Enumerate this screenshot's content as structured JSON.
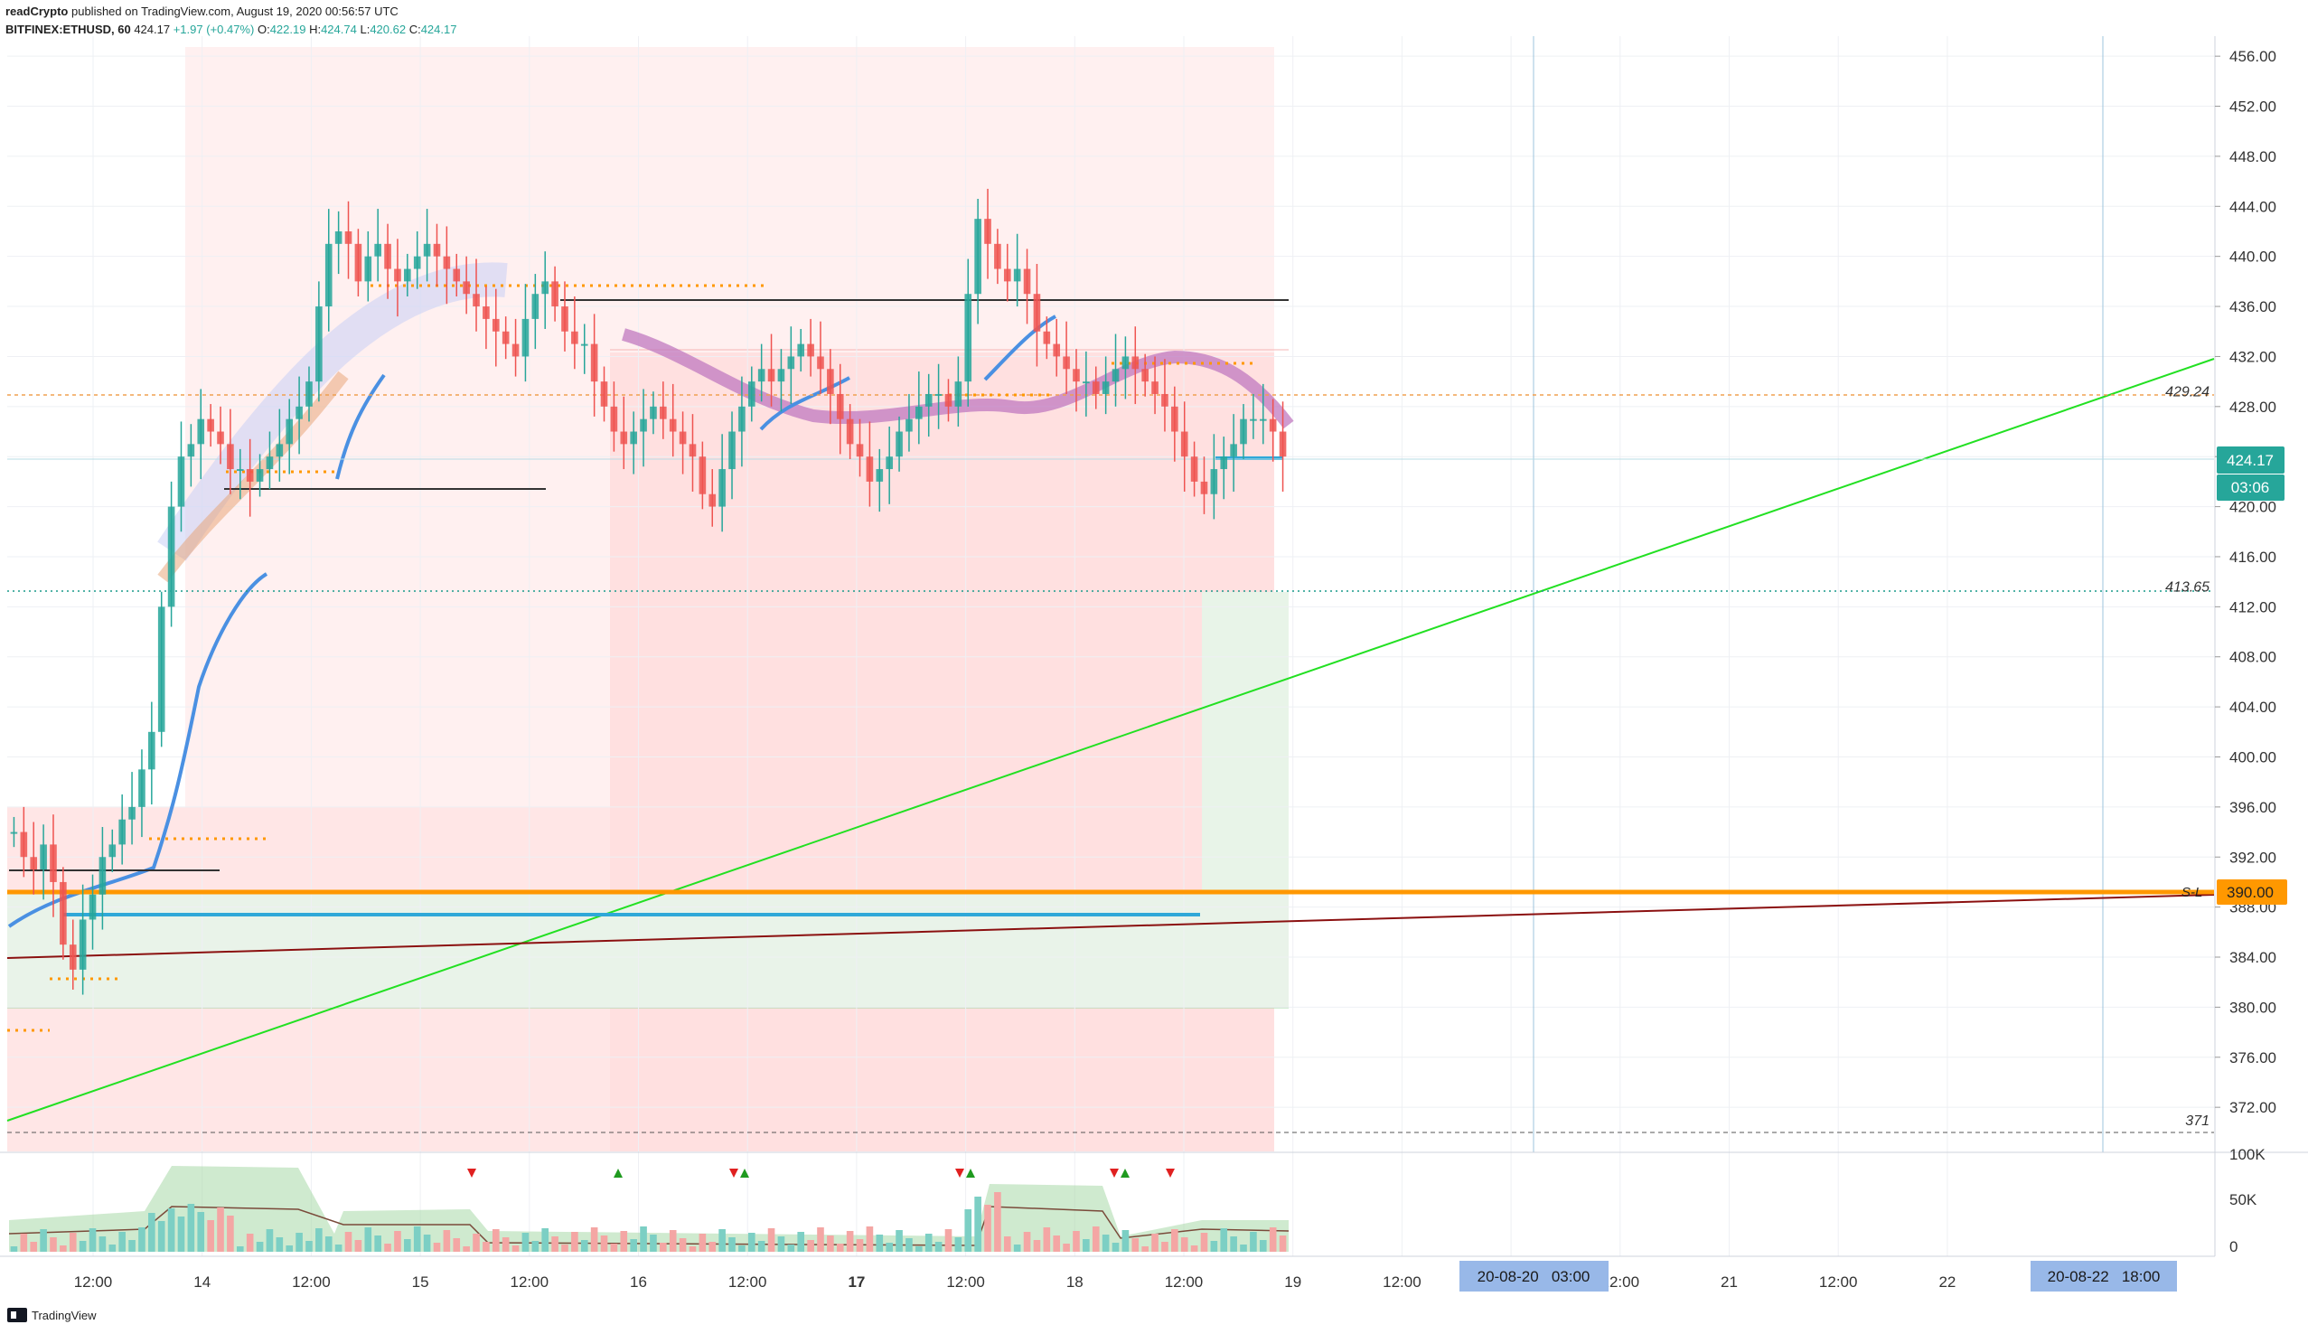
{
  "header": {
    "publisher": "readCrypto",
    "published_text": "published on TradingView.com, August 19, 2020 00:56:57 UTC",
    "symbol": "BITFINEX:ETHUSD, 60",
    "last": "424.17",
    "change": "+1.97 (+0.47%)",
    "o_label": "O:",
    "o": "422.19",
    "h_label": "H:",
    "h": "424.74",
    "l_label": "L:",
    "l": "420.62",
    "c_label": "C:",
    "c": "424.17"
  },
  "footer": {
    "brand": "TradingView"
  },
  "colors": {
    "up": "#26a69a",
    "down": "#ef5350",
    "green_line": "#22e022",
    "orange_line": "#ff9800",
    "dark_red_line": "#8b1010",
    "blue_line": "#2fa8d8",
    "ema": "#4a90e2",
    "cloud_purple": "#c079c0"
  },
  "chart_data": {
    "type": "candlestick",
    "symbol": "BITFINEX:ETHUSD",
    "interval": "60",
    "ylim": [
      368.4,
      457.6
    ],
    "price_ticks": [
      "456.00",
      "452.00",
      "448.00",
      "444.00",
      "440.00",
      "436.00",
      "432.00",
      "428.00",
      "424.00",
      "420.00",
      "416.00",
      "412.00",
      "408.00",
      "404.00",
      "400.00",
      "396.00",
      "392.00",
      "388.00",
      "384.00",
      "380.00",
      "376.00",
      "372.00"
    ],
    "time_ticks": [
      "12:00",
      "14",
      "12:00",
      "15",
      "12:00",
      "16",
      "12:00",
      "17",
      "12:00",
      "18",
      "12:00",
      "19",
      "12:00",
      "20",
      "12:00",
      "21",
      "12:00",
      "22"
    ],
    "date_highlights": [
      "20-08-20   03:00",
      "20-08-22   18:00"
    ],
    "last_price": "424.17",
    "countdown": "03:06",
    "support_label": "390.00",
    "support_line_label": "S-L",
    "level_labels": [
      {
        "value": 429.24,
        "text": "429.24"
      },
      {
        "value": 413.65,
        "text": "413.65"
      },
      {
        "value": 371,
        "text": "371"
      }
    ],
    "volume_ticks": [
      "100K",
      "50K",
      "0"
    ],
    "ohlc_close_series": [
      394,
      392,
      391,
      393,
      390,
      385,
      383,
      387,
      389,
      392,
      393,
      395,
      396,
      399,
      402,
      412,
      420,
      424,
      425,
      427,
      426,
      425,
      423,
      423,
      422,
      423,
      424,
      425,
      427,
      428,
      430,
      436,
      441,
      442,
      441,
      438,
      440,
      441,
      439,
      438,
      439,
      440,
      441,
      440,
      439,
      438,
      437,
      436,
      435,
      434,
      433,
      432,
      435,
      437,
      438,
      436,
      434,
      433,
      433,
      430,
      428,
      426,
      425,
      426,
      427,
      428,
      427,
      426,
      425,
      424,
      421,
      420,
      423,
      426,
      428,
      430,
      431,
      430,
      431,
      432,
      433,
      432,
      431,
      429,
      427,
      425,
      424,
      422,
      423,
      424,
      426,
      427,
      428,
      429,
      429,
      428,
      430,
      437,
      443,
      441,
      439,
      438,
      439,
      437,
      434,
      433,
      432,
      431,
      430,
      430,
      429,
      430,
      431,
      432,
      431,
      430,
      429,
      428,
      426,
      424,
      422,
      421,
      423,
      424,
      425,
      427,
      427,
      427,
      426,
      424
    ]
  }
}
